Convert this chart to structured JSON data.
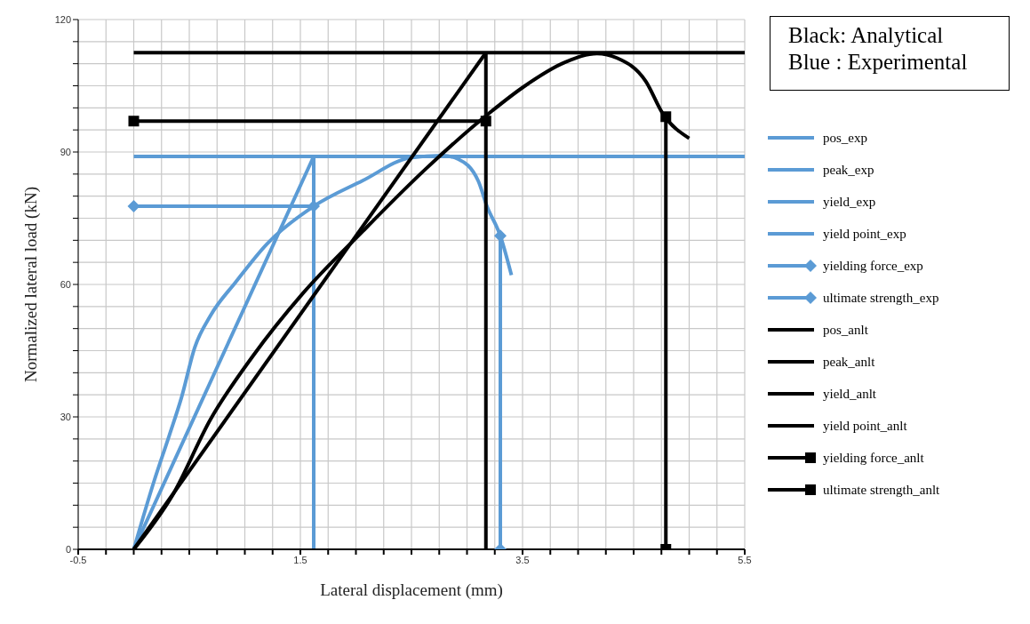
{
  "chart_data": {
    "type": "line",
    "xlabel": "Lateral displacement (mm)",
    "ylabel": "Normalized lateral load (kN)",
    "annotations": [
      "Black: Analytical",
      "Blue : Experimental"
    ],
    "xlim": [
      -0.5,
      5.5
    ],
    "ylim": [
      0,
      120
    ],
    "xticks": [
      -0.5,
      {
        "value": -0.25,
        "label": null
      },
      {
        "value": 0,
        "label": null
      },
      {
        "value": 0.25,
        "label": null
      },
      {
        "value": 0.5,
        "label": null
      },
      {
        "value": 0.75,
        "label": null
      },
      {
        "value": 1,
        "label": null
      },
      {
        "value": 1.25,
        "label": null
      },
      1.5,
      {
        "value": 1.75,
        "label": null
      },
      {
        "value": 2,
        "label": null
      },
      {
        "value": 2.25,
        "label": null
      },
      {
        "value": 2.5,
        "label": null
      },
      {
        "value": 2.75,
        "label": null
      },
      {
        "value": 3,
        "label": null
      },
      {
        "value": 3.25,
        "label": null
      },
      3.5,
      {
        "value": 3.75,
        "label": null
      },
      {
        "value": 4,
        "label": null
      },
      {
        "value": 4.25,
        "label": null
      },
      {
        "value": 4.5,
        "label": null
      },
      {
        "value": 4.75,
        "label": null
      },
      {
        "value": 5,
        "label": null
      },
      {
        "value": 5.25,
        "label": null
      },
      5.5
    ],
    "yticks": [
      0,
      {
        "value": 5,
        "label": null
      },
      {
        "value": 10,
        "label": null
      },
      {
        "value": 15,
        "label": null
      },
      {
        "value": 20,
        "label": null
      },
      {
        "value": 25,
        "label": null
      },
      30,
      {
        "value": 35,
        "label": null
      },
      {
        "value": 40,
        "label": null
      },
      {
        "value": 45,
        "label": null
      },
      {
        "value": 50,
        "label": null
      },
      {
        "value": 55,
        "label": null
      },
      60,
      {
        "value": 65,
        "label": null
      },
      {
        "value": 70,
        "label": null
      },
      {
        "value": 75,
        "label": null
      },
      {
        "value": 80,
        "label": null
      },
      {
        "value": 85,
        "label": null
      },
      90,
      {
        "value": 95,
        "label": null
      },
      {
        "value": 100,
        "label": null
      },
      {
        "value": 105,
        "label": null
      },
      {
        "value": 110,
        "label": null
      },
      {
        "value": 115,
        "label": null
      },
      120
    ],
    "grid": true,
    "legend": "right",
    "line_style": "solid",
    "series": [
      {
        "name": "pos_exp",
        "color": "#5b9bd5",
        "marker": "none",
        "x": [
          0,
          0.18,
          0.32,
          0.43,
          0.55,
          0.69,
          0.92,
          1.2,
          1.62,
          2.06,
          2.49,
          2.78,
          2.92,
          3.1,
          3.18,
          3.3,
          3.4
        ],
        "values": [
          0,
          15.2,
          25.8,
          34.4,
          45.8,
          52.9,
          60.6,
          69.2,
          77.7,
          83.5,
          88.7,
          89.2,
          88.4,
          83.5,
          77.7,
          71,
          62.1
        ]
      },
      {
        "name": "peak_exp",
        "color": "#5b9bd5",
        "marker": "none",
        "x": [
          0,
          5.5
        ],
        "values": [
          89,
          89
        ]
      },
      {
        "name": "yield_exp",
        "color": "#5b9bd5",
        "marker": "none",
        "x": [
          0,
          1.62
        ],
        "values": [
          0,
          89
        ]
      },
      {
        "name": "yield point_exp",
        "color": "#5b9bd5",
        "marker": "none",
        "x": [
          1.62,
          1.62
        ],
        "values": [
          0,
          89
        ]
      },
      {
        "name": "yielding force_exp",
        "color": "#5b9bd5",
        "marker": "diamond",
        "x": [
          0,
          1.62
        ],
        "values": [
          77.7,
          77.7
        ]
      },
      {
        "name": "ultimate strength_exp",
        "color": "#5b9bd5",
        "marker": "diamond",
        "x": [
          3.3,
          3.3
        ],
        "values": [
          0,
          71
        ]
      },
      {
        "name": "pos_anlt",
        "color": "#000000",
        "marker": "none",
        "x": [
          0,
          0.35,
          0.69,
          1.07,
          1.52,
          2.06,
          2.63,
          3.21,
          3.5,
          3.89,
          4.17,
          4.35,
          4.61,
          4.76,
          5.0
        ],
        "values": [
          0,
          12.3,
          29.4,
          43.7,
          57.9,
          72,
          86.2,
          99,
          104.6,
          110.4,
          112.3,
          111.3,
          106,
          98.8,
          93.1
        ]
      },
      {
        "name": "peak_anlt",
        "color": "#000000",
        "marker": "none",
        "x": [
          0,
          5.5
        ],
        "values": [
          112.5,
          112.5
        ]
      },
      {
        "name": "yield_anlt",
        "color": "#000000",
        "marker": "none",
        "x": [
          0,
          3.17
        ],
        "values": [
          0,
          112.5
        ]
      },
      {
        "name": "yield point_anlt",
        "color": "#000000",
        "marker": "none",
        "x": [
          3.17,
          3.17
        ],
        "values": [
          0,
          112.5
        ]
      },
      {
        "name": "yielding force_anlt",
        "color": "#000000",
        "marker": "square",
        "x": [
          0,
          3.17
        ],
        "values": [
          97,
          97
        ]
      },
      {
        "name": "ultimate strength_anlt",
        "color": "#000000",
        "marker": "square",
        "x": [
          4.79,
          4.79
        ],
        "values": [
          0,
          98
        ]
      }
    ]
  }
}
